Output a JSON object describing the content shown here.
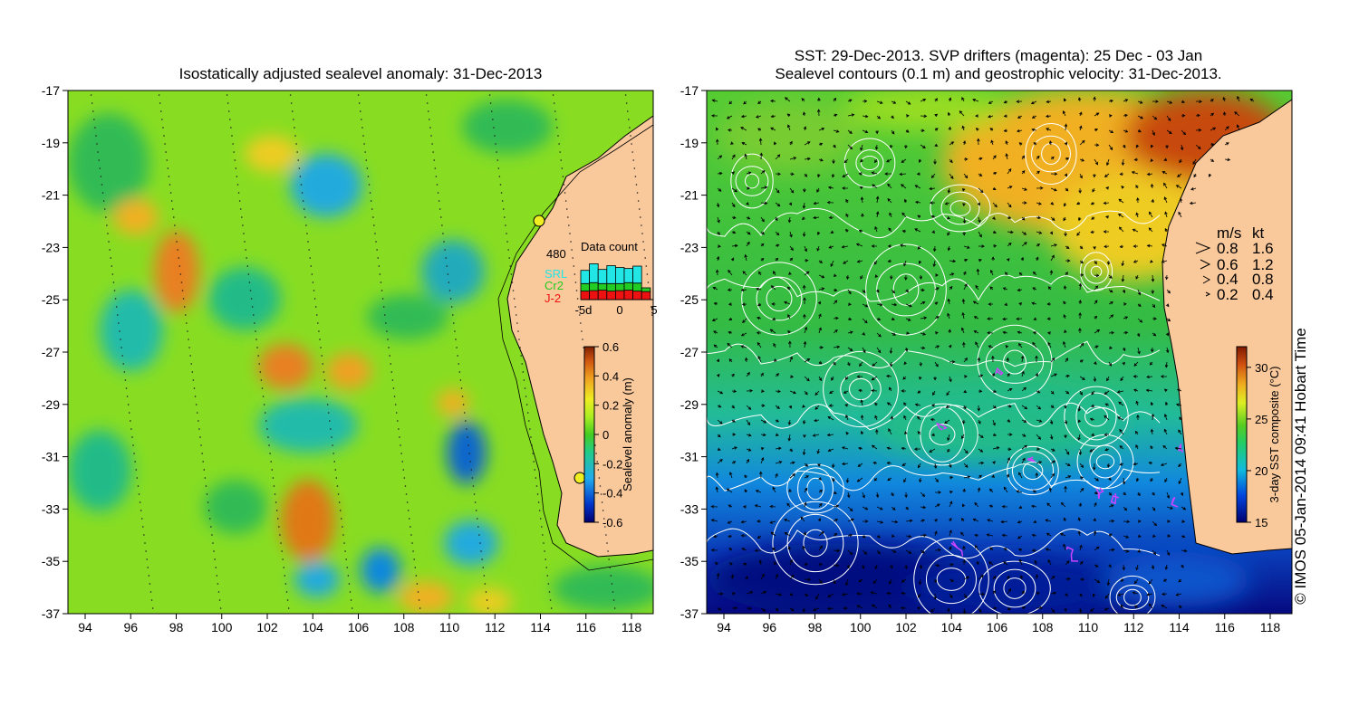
{
  "left_panel": {
    "title": "Isostatically adjusted sealevel anomaly: 31-Dec-2013",
    "y_ticks": [
      "-17",
      "-19",
      "-21",
      "-23",
      "-25",
      "-27",
      "-29",
      "-31",
      "-33",
      "-35",
      "-37"
    ],
    "x_ticks": [
      "94",
      "96",
      "98",
      "100",
      "102",
      "104",
      "106",
      "108",
      "110",
      "112",
      "114",
      "116",
      "118"
    ],
    "colorbar": {
      "label": "Sealevel anomaly (m)",
      "ticks": [
        "0.6",
        "0.4",
        "0.2",
        "0",
        "-0.2",
        "-0.4",
        "-0.6"
      ],
      "min": -0.6,
      "max": 0.6
    },
    "data_count": {
      "title": "Data count",
      "max_label": "480",
      "legend": [
        {
          "label": "SRL",
          "color": "#22e6e6"
        },
        {
          "label": "Cr2",
          "color": "#22cc22"
        },
        {
          "label": "J-2",
          "color": "#ee1111"
        }
      ],
      "x_ticks": [
        "-5d",
        "0",
        "5"
      ],
      "bars": [
        {
          "j2": 90,
          "cr2": 80,
          "srl": 140
        },
        {
          "j2": 95,
          "cr2": 85,
          "srl": 200
        },
        {
          "j2": 100,
          "cr2": 70,
          "srl": 150
        },
        {
          "j2": 90,
          "cr2": 80,
          "srl": 190
        },
        {
          "j2": 95,
          "cr2": 75,
          "srl": 170
        },
        {
          "j2": 100,
          "cr2": 80,
          "srl": 150
        },
        {
          "j2": 90,
          "cr2": 85,
          "srl": 180
        },
        {
          "j2": 85,
          "cr2": 40,
          "srl": 0
        }
      ]
    }
  },
  "right_panel": {
    "title_line1": "SST: 29-Dec-2013. SVP drifters (magenta): 25 Dec - 03 Jan",
    "title_line2": "Sealevel contours (0.1 m) and geostrophic velocity: 31-Dec-2013.",
    "y_ticks": [
      "-17",
      "-19",
      "-21",
      "-23",
      "-25",
      "-27",
      "-29",
      "-31",
      "-33",
      "-35",
      "-37"
    ],
    "x_ticks": [
      "94",
      "96",
      "98",
      "100",
      "102",
      "104",
      "106",
      "108",
      "110",
      "112",
      "114",
      "116",
      "118"
    ],
    "colorbar": {
      "label": "3-day SST composite (°C)",
      "ticks": [
        "30",
        "25",
        "20",
        "15"
      ],
      "min": 15,
      "max": 32
    },
    "velocity_key": {
      "header_ms": "m/s",
      "header_kt": "kt",
      "rows": [
        {
          "ms": "0.8",
          "kt": "1.6"
        },
        {
          "ms": "0.6",
          "kt": "1.2"
        },
        {
          "ms": "0.4",
          "kt": "0.8"
        },
        {
          "ms": "0.2",
          "kt": "0.4"
        }
      ]
    }
  },
  "credit": "© IMOS 05-Jan-2014 09:41 Hobart Time",
  "colors": {
    "land": "#f9c89b",
    "coast": "#000000",
    "contour": "#ffffff",
    "drifter": "#cc44ff"
  }
}
